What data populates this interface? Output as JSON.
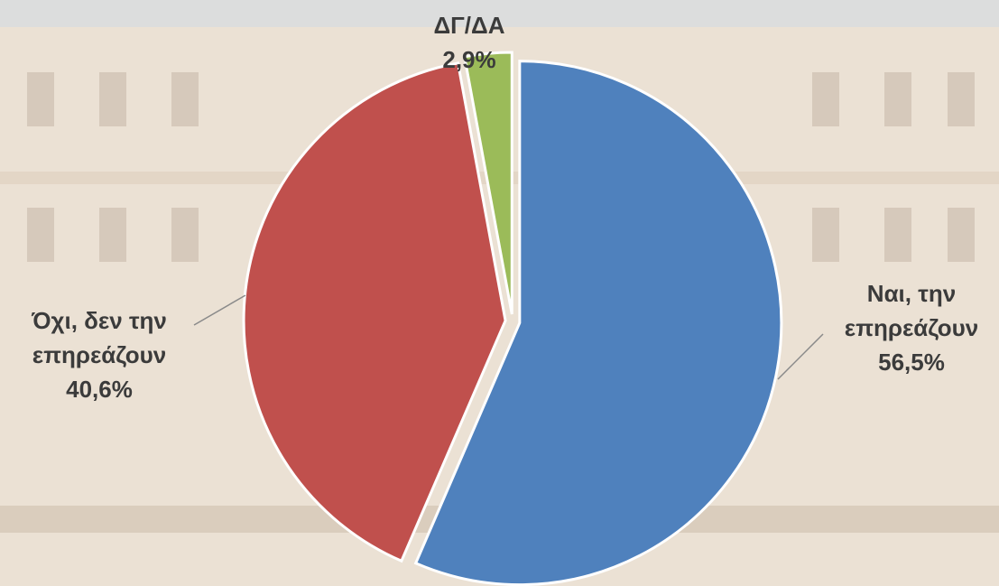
{
  "chart_data": {
    "type": "pie",
    "categories": [
      "Ναι, την επηρεάζουν",
      "Όχι, δεν την επηρεάζουν",
      "ΔΓ/ΔΑ"
    ],
    "values": [
      56.5,
      40.6,
      2.9
    ],
    "value_labels": [
      "56,5%",
      "40,6%",
      "2,9%"
    ],
    "colors": [
      "#4f81bd",
      "#c0504d",
      "#9bbb59"
    ]
  }
}
